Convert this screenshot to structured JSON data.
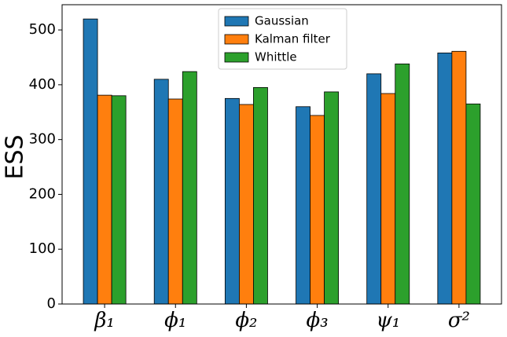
{
  "chart_data": {
    "type": "bar",
    "y_label": "ESS",
    "categories": [
      "β₁",
      "ϕ₁",
      "ϕ₂",
      "ϕ₃",
      "ψ₁",
      "σ²"
    ],
    "series": [
      {
        "name": "Gaussian",
        "color": "#1f77b4",
        "values": [
          520,
          410,
          375,
          360,
          420,
          458
        ]
      },
      {
        "name": "Kalman filter",
        "color": "#ff7f0e",
        "values": [
          381,
          374,
          364,
          344,
          384,
          461
        ]
      },
      {
        "name": "Whittle",
        "color": "#2ca02c",
        "values": [
          380,
          424,
          395,
          387,
          438,
          365
        ]
      }
    ],
    "ylim": [
      0,
      546
    ],
    "yticks": [
      0,
      100,
      200,
      300,
      400,
      500
    ],
    "legend": "upper center"
  }
}
